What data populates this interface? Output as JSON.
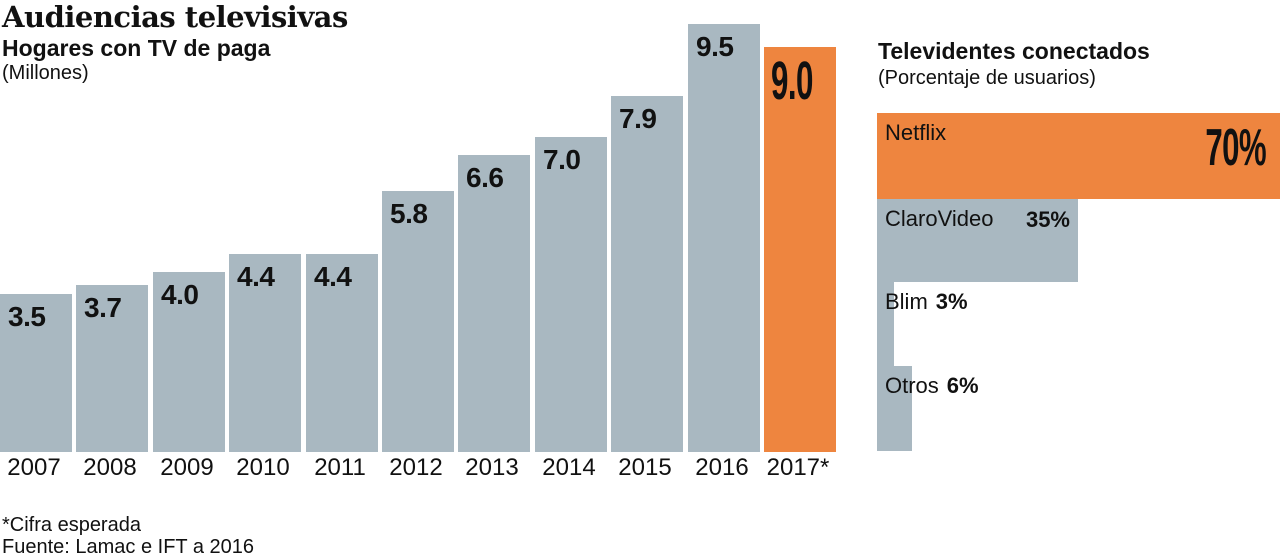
{
  "header": {
    "title": "Audiencias televisivas",
    "subtitle": "Hogares con TV de paga",
    "unit": "(Millones)"
  },
  "right_header": {
    "title": "Televidentes conectados",
    "unit": "(Porcentaje de usuarios)"
  },
  "footer": {
    "note": "*Cifra esperada",
    "source": "Fuente: Lamac e IFT a 2016"
  },
  "colors": {
    "background": "#ffffff",
    "bar_gray": "#a9b8c1",
    "accent_orange": "#ee853f",
    "text": "#111111"
  },
  "chart_data": [
    {
      "type": "bar",
      "orientation": "vertical",
      "title": "Hogares con TV de paga",
      "ylabel": "Millones",
      "categories": [
        "2007",
        "2008",
        "2009",
        "2010",
        "2011",
        "2012",
        "2013",
        "2014",
        "2015",
        "2016",
        "2017*"
      ],
      "values": [
        3.5,
        3.7,
        4.0,
        4.4,
        4.4,
        5.8,
        6.6,
        7.0,
        7.9,
        9.5,
        9.0
      ],
      "value_labels": [
        "3.5",
        "3.7",
        "4.0",
        "4.4",
        "4.4",
        "5.8",
        "6.6",
        "7.0",
        "7.9",
        "9.5",
        "9.0"
      ],
      "highlight_index": 10,
      "ylim": [
        0,
        10
      ],
      "grid": false,
      "legend": false
    },
    {
      "type": "bar",
      "orientation": "horizontal",
      "title": "Televidentes conectados",
      "xlabel": "Porcentaje de usuarios",
      "categories": [
        "Netflix",
        "ClaroVideo",
        "Blim",
        "Otros"
      ],
      "values": [
        70,
        35,
        3,
        6
      ],
      "value_labels": [
        "70%",
        "35%",
        "3%",
        "6%"
      ],
      "highlight_index": 0,
      "xlim": [
        0,
        70
      ],
      "grid": false,
      "legend": false
    }
  ]
}
